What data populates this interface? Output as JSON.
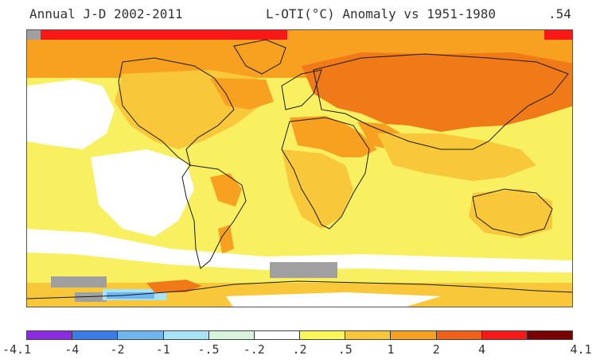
{
  "header": {
    "left": "Annual J-D 2002-2011",
    "center": "L-OTI(°C) Anomaly vs 1951-1980",
    "right": ".54"
  },
  "legend": {
    "colors": [
      "#8a2be2",
      "#3a7de8",
      "#6fb6f0",
      "#a8e4f8",
      "#d8f4dc",
      "#ffffff",
      "#f8f858",
      "#f8c83a",
      "#f8a020",
      "#f06018",
      "#f81818",
      "#780000"
    ],
    "labels": [
      "-4.1",
      "-4",
      "-2",
      "-1",
      "-.5",
      "-.2",
      ".2",
      ".5",
      "1",
      "2",
      "4",
      "4.1"
    ]
  },
  "map_colors": {
    "yellow": "#f8f060",
    "gold": "#f8c83a",
    "orange": "#f8a020",
    "dark_orange": "#f07a18",
    "red": "#f81818",
    "white": "#ffffff",
    "gray": "#a0a0a0",
    "light_blue": "#a8e4f8",
    "mid_blue": "#6fb6f0",
    "coast": "#1a1a1a"
  }
}
